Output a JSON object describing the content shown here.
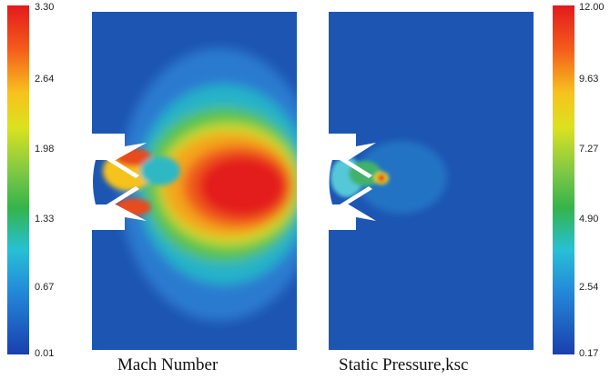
{
  "left_panel": {
    "caption": "Mach Number",
    "colorbar": {
      "ticks": [
        "3.30",
        "2.64",
        "1.98",
        "1.33",
        "0.67",
        "0.01"
      ],
      "min": 0.01,
      "max": 3.3
    }
  },
  "right_panel": {
    "caption": "Static Pressure,ksc",
    "colorbar": {
      "ticks": [
        "12.00",
        "9.63",
        "7.27",
        "4.90",
        "2.54",
        "0.17"
      ],
      "min": 0.17,
      "max": 12.0
    }
  },
  "colors": {
    "jet_low": "#1f4fb0",
    "jet_mid": "#3ec24a",
    "jet_high": "#e61e1e",
    "background_field": "#1d55b3"
  }
}
